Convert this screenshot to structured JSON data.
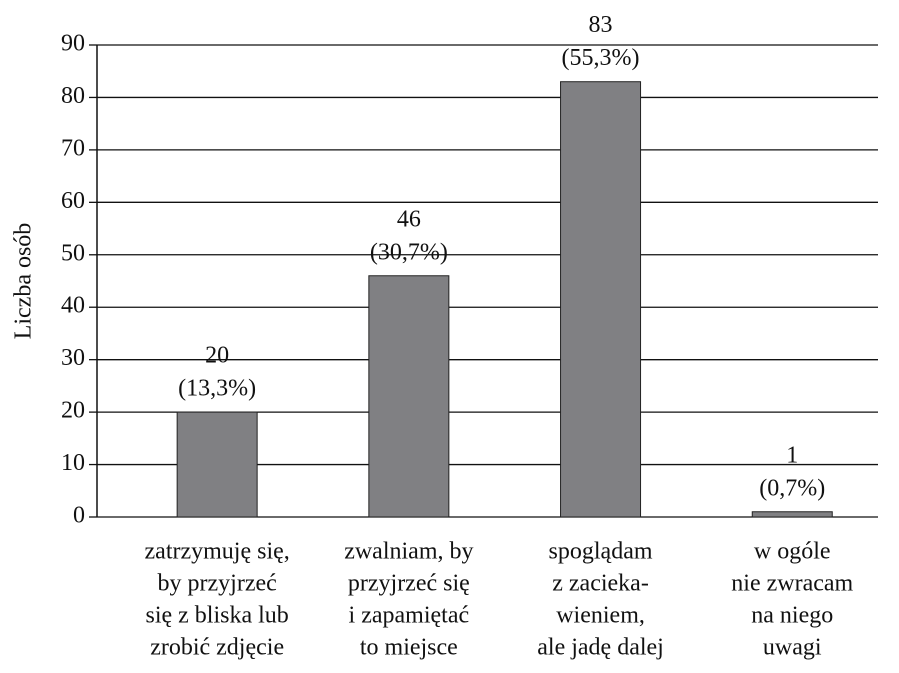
{
  "chart_data": {
    "type": "bar",
    "y_label": "Liczba osób",
    "categories": [
      [
        "zatrzymuję się,",
        "by przyjrzeć",
        "się z bliska lub",
        "zrobić zdjęcie"
      ],
      [
        "zwalniam, by",
        "przyjrzeć się",
        "i zapamiętać",
        "to miejsce"
      ],
      [
        "spoglądam",
        "z zacieka-",
        "wieniem,",
        "ale jadę dalej"
      ],
      [
        "w ogóle",
        "nie zwracam",
        "na niego",
        "uwagi"
      ]
    ],
    "values": [
      20,
      46,
      83,
      1
    ],
    "value_labels": [
      [
        "20",
        "(13,3%)"
      ],
      [
        "46",
        "(30,7%)"
      ],
      [
        "83",
        "(55,3%)"
      ],
      [
        "1",
        "(0,7%)"
      ]
    ],
    "color": "#808083",
    "ylim": [
      0,
      90
    ],
    "yticks": [
      0,
      10,
      20,
      30,
      40,
      50,
      60,
      70,
      80,
      90
    ],
    "grid": true
  }
}
